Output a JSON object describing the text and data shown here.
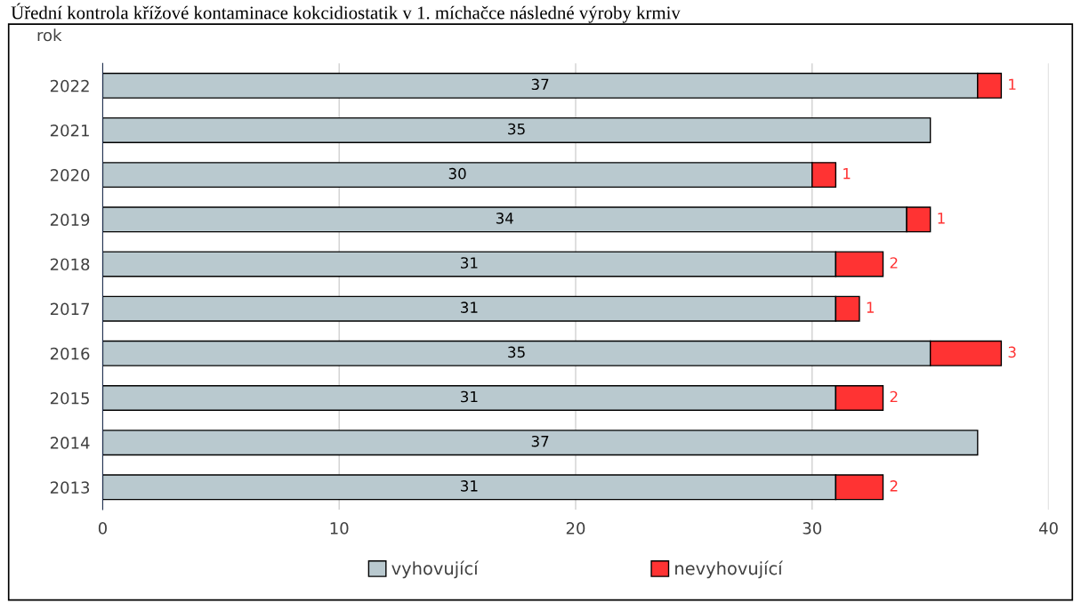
{
  "chart_data": {
    "type": "bar",
    "orientation": "horizontal",
    "stacked": true,
    "title": "Úřední kontrola křížové kontaminace kokcidiostatik v 1. míchačce následné výroby krmiv",
    "ylabel": "rok",
    "categories": [
      "2022",
      "2021",
      "2020",
      "2019",
      "2018",
      "2017",
      "2016",
      "2015",
      "2014",
      "2013"
    ],
    "series": [
      {
        "name": "vyhovující",
        "color": "#b9c9cf",
        "values": [
          37,
          35,
          30,
          34,
          31,
          31,
          35,
          31,
          37,
          31
        ]
      },
      {
        "name": "nevyhovující",
        "color": "#ff3333",
        "values": [
          1,
          null,
          1,
          1,
          2,
          1,
          3,
          2,
          null,
          2
        ]
      }
    ],
    "xlim": [
      0,
      40
    ],
    "xticks": [
      0,
      10,
      20,
      30,
      40
    ],
    "grid": "x",
    "legend": "bottom",
    "data_labels": true
  }
}
